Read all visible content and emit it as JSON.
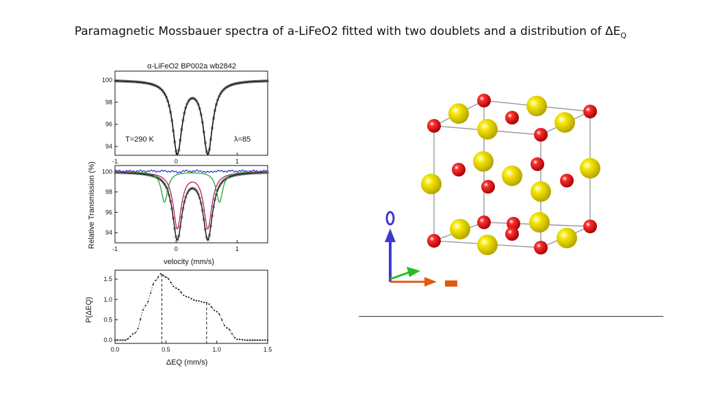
{
  "slide": {
    "title_text": "Paramagnetic Mossbauer spectra of a-LiFeO2 fitted with two doublets and a distribution of ΔE",
    "title_sub": "Q"
  },
  "colors": {
    "fit": "#111111",
    "points": "#666666",
    "residual": "#1f2bd6",
    "doublet1": "#c0196e",
    "doublet2": "#29a329",
    "oxygen": "#e01010",
    "lithium": "#f0e000",
    "axis_x": "#e05a10",
    "axis_y": "#22c022",
    "axis_z": "#3a3ad0"
  },
  "chart_data": [
    {
      "type": "scatter",
      "title": "α-LiFeO2 BP002a wb2842",
      "xlim": [
        -1,
        1.5
      ],
      "ylim": [
        93.2,
        100.8
      ],
      "xticks": [
        "-1",
        "0",
        "1"
      ],
      "yticks": [
        "94",
        "96",
        "98",
        "100"
      ],
      "annotations": [
        "T=290 K",
        "λ=85"
      ],
      "doublet": {
        "baseline": 100,
        "lines": [
          {
            "center": 0.27,
            "split": 0.5,
            "depth": 6.5,
            "width": 0.19
          }
        ]
      },
      "series": [
        {
          "values_description": "measured points with fitted curve"
        }
      ]
    },
    {
      "type": "line",
      "xlim": [
        -1,
        1.5
      ],
      "ylim": [
        93.0,
        100.6
      ],
      "xticks": [
        "-1",
        "0",
        "1"
      ],
      "yticks": [
        "94",
        "96",
        "98",
        "100"
      ],
      "xlabel": "velocity (mm/s)",
      "ylabel": "Relative Transmission (%)",
      "total_fit": {
        "baseline": 100,
        "lines": [
          {
            "center": 0.27,
            "split": 0.5,
            "depth": 6.5,
            "width": 0.19
          }
        ]
      },
      "component_1": {
        "baseline": 100,
        "lines": [
          {
            "center": 0.27,
            "split": 0.5,
            "depth": 5.5,
            "width": 0.16
          }
        ]
      },
      "component_2": {
        "baseline": 100,
        "lines": [
          {
            "center": 0.26,
            "split": 0.9,
            "depth": 3.0,
            "width": 0.13
          }
        ]
      },
      "residual_level": 100.05
    },
    {
      "type": "line",
      "xlabel": "ΔEQ (mm/s)",
      "ylabel": "P(ΔEQ)",
      "xlim": [
        0,
        1.5
      ],
      "ylim": [
        -0.08,
        1.72
      ],
      "xticks": [
        "0.0",
        "0.5",
        "1.0",
        "1.5"
      ],
      "yticks": [
        "0.0",
        "0.5",
        "1.0",
        "1.5"
      ],
      "x": [
        0.0,
        0.1,
        0.2,
        0.3,
        0.4,
        0.45,
        0.5,
        0.6,
        0.7,
        0.8,
        0.9,
        1.0,
        1.1,
        1.2,
        1.3,
        1.5
      ],
      "y": [
        0.0,
        0.0,
        0.18,
        0.85,
        1.47,
        1.63,
        1.55,
        1.28,
        1.07,
        0.97,
        0.92,
        0.7,
        0.3,
        0.02,
        0.0,
        0.0
      ],
      "markers": [
        0.46,
        0.9
      ]
    }
  ]
}
